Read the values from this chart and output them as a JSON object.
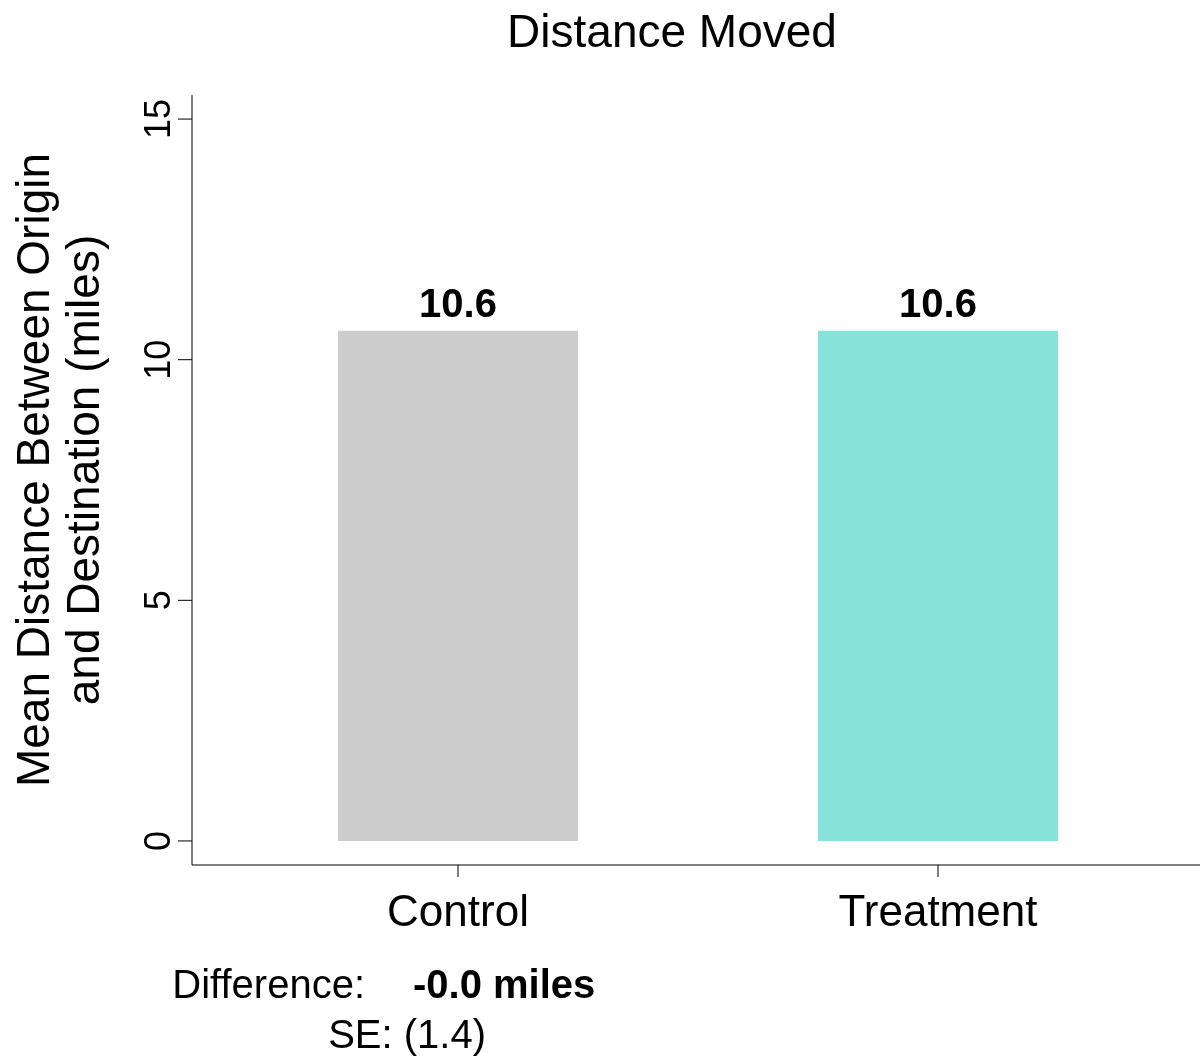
{
  "chart_data": {
    "type": "bar",
    "title": "Distance Moved",
    "ylabel": "Mean Distance Between Origin and Destination (miles)",
    "categories": [
      "Control",
      "Treatment"
    ],
    "values": [
      10.6,
      10.6
    ],
    "colors": [
      "#cccccc",
      "#86e3d9"
    ],
    "data_labels": true,
    "ylim": [
      -0.5,
      15.5
    ],
    "yticks": [
      0,
      5,
      10,
      15
    ],
    "annotations": [
      "Difference:",
      "-0.0 miles",
      "SE: (1.4)"
    ]
  }
}
